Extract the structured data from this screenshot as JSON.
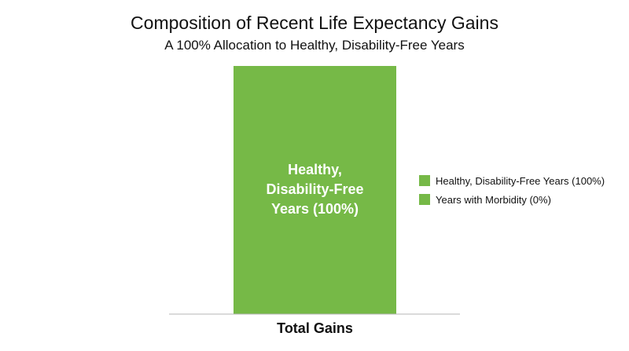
{
  "chart_data": {
    "type": "bar",
    "stacked": true,
    "title": "Composition of Recent Life Expectancy Gains",
    "subtitle": "A 100% Allocation to Healthy, Disability-Free Years",
    "categories": [
      "Total Gains"
    ],
    "ylim": [
      0,
      100
    ],
    "grid": false,
    "legend_position": "right",
    "series": [
      {
        "name": "Healthy, Disability-Free Years (100%)",
        "values": [
          100
        ],
        "color": "#76b947",
        "bar_label": [
          "Healthy,",
          "Disability-Free",
          "Years (100%)"
        ]
      },
      {
        "name": "Years with Morbidity (0%)",
        "values": [
          0
        ],
        "color": "#76b947"
      }
    ]
  }
}
